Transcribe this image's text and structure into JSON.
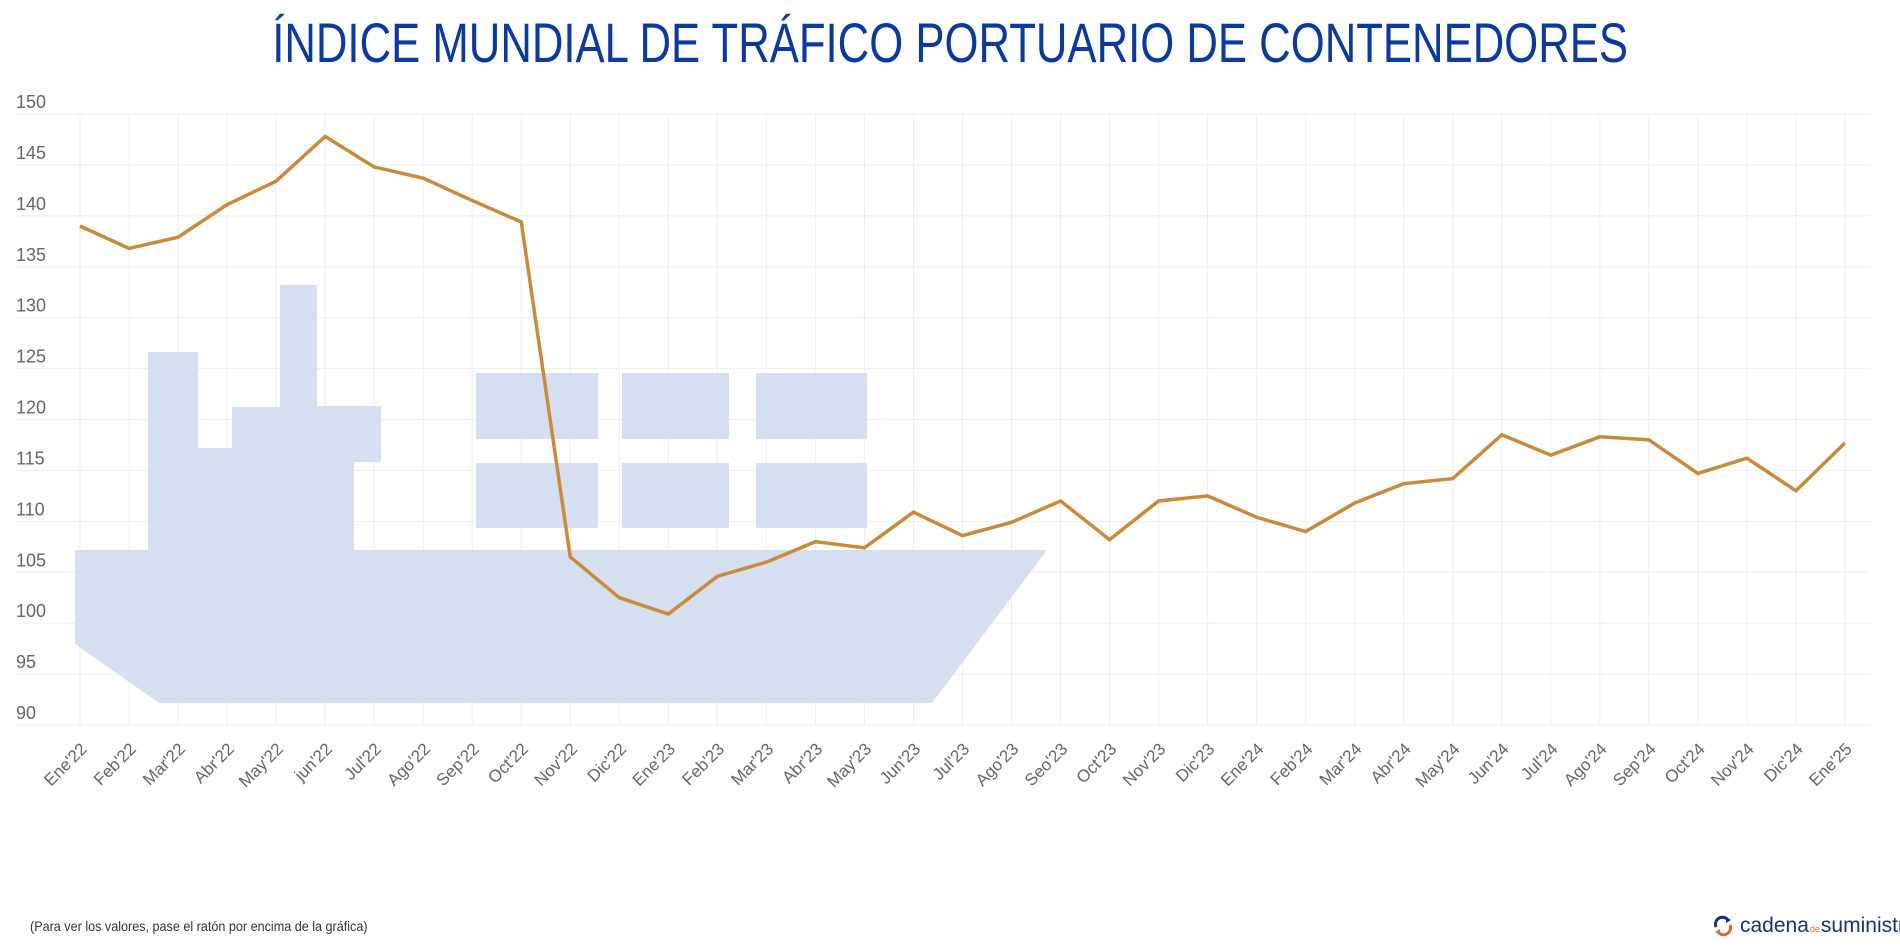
{
  "title": "ÍNDICE MUNDIAL DE TRÁFICO PORTUARIO DE CONTENEDORES",
  "footer_note": "(Para ver los valores, pase el ratón por encima de la gráfica)",
  "logo": {
    "part1": "cadena",
    "part2": "de",
    "part3": "suministro"
  },
  "colors": {
    "title": "#0b3a9c",
    "line": "#c98a3c",
    "ship": "#d6dff0",
    "grid": "#eeeeee",
    "tick_text": "#666666"
  },
  "chart_data": {
    "type": "line",
    "title": "ÍNDICE MUNDIAL DE TRÁFICO PORTUARIO DE CONTENEDORES",
    "xlabel": "",
    "ylabel": "",
    "ylim": [
      90,
      150
    ],
    "yticks": [
      150,
      145,
      140,
      135,
      130,
      125,
      120,
      115,
      110,
      105,
      100,
      95,
      90
    ],
    "grid": true,
    "background_illustration": "container-ship",
    "categories": [
      "Ene'22",
      "Feb'22",
      "Mar'22",
      "Abr'22",
      "May'22",
      "jun'22",
      "Jul'22",
      "Ago'22",
      "Sep'22",
      "Oct'22",
      "Nov'22",
      "Dic'22",
      "Ene'23",
      "Feb'23",
      "Mar'23",
      "Abr'23",
      "May'23",
      "Jun'23",
      "Jul'23",
      "Ago'23",
      "Seo'23",
      "Oct'23",
      "Nov'23",
      "Dic'23",
      "Ene'24",
      "Feb'24",
      "Mar'24",
      "Abr'24",
      "May'24",
      "Jun'24",
      "Jul'24",
      "Ago'24",
      "Sep'24",
      "Oct'24",
      "Nov'24",
      "Dic'24",
      "Ene'25"
    ],
    "series": [
      {
        "values": [
          139.0,
          136.8,
          137.9,
          141.1,
          143.4,
          147.8,
          144.8,
          143.7,
          141.5,
          139.4,
          106.5,
          102.5,
          100.9,
          104.6,
          106.0,
          108.0,
          107.4,
          110.9,
          108.6,
          109.9,
          112.0,
          108.2,
          112.0,
          112.5,
          110.4,
          109.0,
          111.8,
          113.7,
          114.2,
          118.5,
          116.5,
          118.3,
          118.0,
          114.7,
          116.2,
          113.0,
          117.7
        ]
      }
    ]
  }
}
